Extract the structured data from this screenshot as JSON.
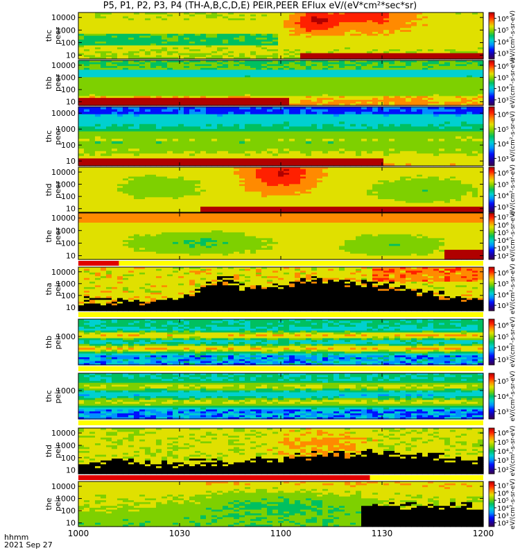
{
  "title": "P5, P1, P2, P3, P4 (TH-A,B,C,D,E) PEIR,PEER EFlux eV/(eV*cm²*sec*sr)",
  "footer": {
    "time_label": "hhmm",
    "date_label": "2021 Sep 27"
  },
  "colors": {
    "colormap": [
      "#3a004a",
      "#1a00a0",
      "#0010ff",
      "#0090ff",
      "#00d0d0",
      "#00c060",
      "#7ed000",
      "#e0e000",
      "#ff8a00",
      "#ff2000",
      "#b00000"
    ],
    "no_data": "#000000",
    "flag_bar": "#e00000",
    "flag_bg": "#ffff00"
  },
  "chart_data": {
    "type": "heatmap",
    "xlabel": "",
    "xlim": [
      0,
      120
    ],
    "x_ticks": [
      0,
      30,
      60,
      90,
      120
    ],
    "x_tick_labels": [
      "1000",
      "1030",
      "1100",
      "1130",
      "1200"
    ],
    "cbar_title": "eV/(cm²-s-sr-eV)",
    "panels": [
      {
        "ylabel": [
          "thc",
          "peer"
        ],
        "ylim": [
          5,
          25000
        ],
        "yscale": "log",
        "y_tick_labels": [
          "10",
          "100",
          "1000",
          "10000"
        ],
        "cbar_labels": [
          "10³",
          "10⁴",
          "10⁵",
          "10⁶"
        ]
      },
      {
        "ylabel": [
          "thb",
          "peer"
        ],
        "ylim": [
          5,
          25000
        ],
        "yscale": "log",
        "y_tick_labels": [
          "10",
          "100",
          "1000",
          "10000"
        ],
        "cbar_labels": [
          "10³",
          "10⁴",
          "10⁵",
          "10⁶"
        ]
      },
      {
        "ylabel": [
          "thc",
          "peer"
        ],
        "ylim": [
          5,
          25000
        ],
        "yscale": "log",
        "y_tick_labels": [
          "10",
          "100",
          "1000",
          "10000"
        ],
        "cbar_labels": [
          "10³",
          "10⁴",
          "10⁵",
          "10⁶"
        ]
      },
      {
        "ylabel": [
          "thd",
          "peer"
        ],
        "ylim": [
          5,
          25000
        ],
        "yscale": "log",
        "y_tick_labels": [
          "10",
          "100",
          "1000",
          "10000"
        ],
        "cbar_labels": [
          "10³",
          "10⁴",
          "10⁵",
          "10⁶"
        ]
      },
      {
        "ylabel": [
          "the",
          "peer"
        ],
        "ylim": [
          5,
          25000
        ],
        "yscale": "log",
        "y_tick_labels": [
          "10",
          "100",
          "1000",
          "10000"
        ],
        "cbar_labels": [
          "10²",
          "10³",
          "10⁴",
          "10⁵",
          "10⁶",
          "10⁷"
        ]
      },
      {
        "ylabel": [
          "tha",
          "peir"
        ],
        "ylim": [
          5,
          25000
        ],
        "yscale": "log",
        "y_tick_labels": [
          "10",
          "100",
          "1000",
          "10000"
        ],
        "cbar_labels": [
          "10³",
          "10⁴",
          "10⁵",
          "10⁶"
        ]
      },
      {
        "ylabel": [
          "thb",
          "peir"
        ],
        "ylim": [
          5,
          25000
        ],
        "yscale": "log",
        "y_tick_labels": [
          "1000"
        ],
        "cbar_labels": [
          "10³",
          "10⁴",
          "10⁵",
          "10⁶"
        ]
      },
      {
        "ylabel": [
          "thc",
          "peir"
        ],
        "ylim": [
          5,
          25000
        ],
        "yscale": "log",
        "y_tick_labels": [
          "1000"
        ],
        "cbar_labels": [
          "10³",
          "10⁴",
          "10⁵"
        ]
      },
      {
        "ylabel": [
          "thd",
          "peir"
        ],
        "ylim": [
          5,
          25000
        ],
        "yscale": "log",
        "y_tick_labels": [
          "10",
          "100",
          "1000",
          "10000"
        ],
        "cbar_labels": [
          "10²",
          "10³",
          "10⁴",
          "10⁵",
          "10⁶"
        ]
      },
      {
        "ylabel": [
          "the",
          "peir"
        ],
        "ylim": [
          5,
          25000
        ],
        "yscale": "log",
        "y_tick_labels": [
          "10",
          "100",
          "1000",
          "10000"
        ],
        "cbar_labels": [
          "10²",
          "10³",
          "10⁴",
          "10⁵",
          "10⁶",
          "10⁷"
        ]
      }
    ]
  }
}
